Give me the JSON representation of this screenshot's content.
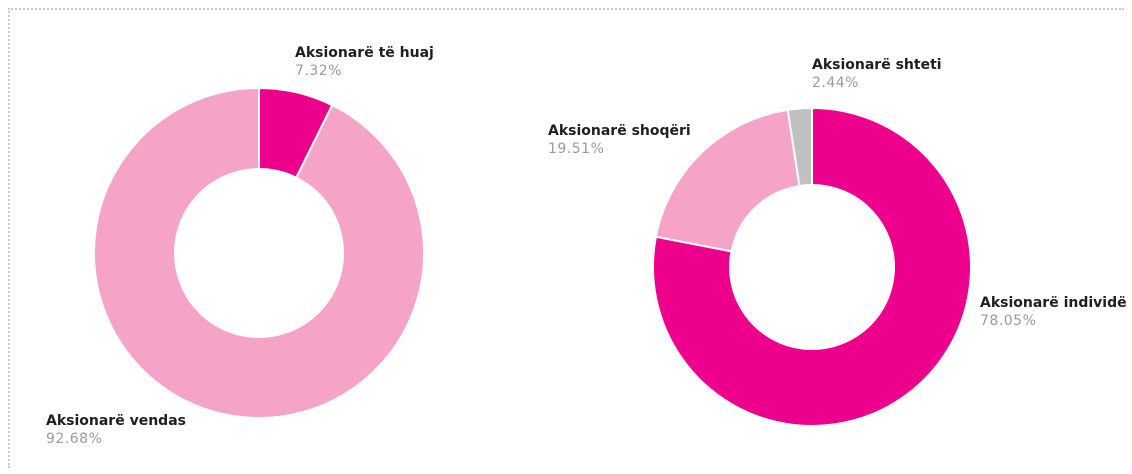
{
  "chart_data": [
    {
      "type": "pie",
      "donut": true,
      "slices": [
        {
          "label": "Aksionarë të huaj",
          "value": 7.32,
          "display": "7.32%",
          "color": "#ec008c"
        },
        {
          "label": "Aksionarë vendas",
          "value": 92.68,
          "display": "92.68%",
          "color": "#f5a3c7"
        }
      ]
    },
    {
      "type": "pie",
      "donut": true,
      "slices": [
        {
          "label": "Aksionarë individë",
          "value": 78.05,
          "display": "78.05%",
          "color": "#ec008c"
        },
        {
          "label": "Aksionarë shoqëri",
          "value": 19.51,
          "display": "19.51%",
          "color": "#f5a3c7"
        },
        {
          "label": "Aksionarë shteti",
          "value": 2.44,
          "display": "2.44%",
          "color": "#c0c0c0"
        }
      ]
    }
  ]
}
